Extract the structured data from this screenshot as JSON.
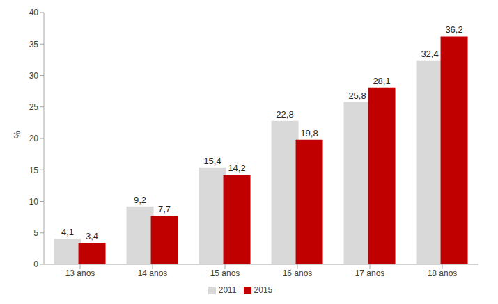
{
  "chart_data": {
    "type": "bar",
    "categories": [
      "13 anos",
      "14 anos",
      "15 anos",
      "16 anos",
      "17 anos",
      "18 anos"
    ],
    "y_label": "%",
    "ylim": [
      0,
      40
    ],
    "yticks": [
      0,
      5,
      10,
      15,
      20,
      25,
      30,
      35,
      40
    ],
    "grid": false,
    "legend": "bottom",
    "data_labels": true,
    "series": [
      {
        "name": "2011",
        "color": "#d9d9d9",
        "values": [
          4.1,
          9.2,
          15.4,
          22.8,
          25.8,
          32.4
        ],
        "value_labels": [
          "4,1",
          "9,2",
          "15,4",
          "22,8",
          "25,8",
          "32,4"
        ]
      },
      {
        "name": "2015",
        "color": "#c00000",
        "values": [
          3.4,
          7.7,
          14.2,
          19.8,
          28.1,
          36.2
        ],
        "value_labels": [
          "3,4",
          "7,7",
          "14,2",
          "19,8",
          "28,1",
          "36,2"
        ]
      }
    ]
  }
}
